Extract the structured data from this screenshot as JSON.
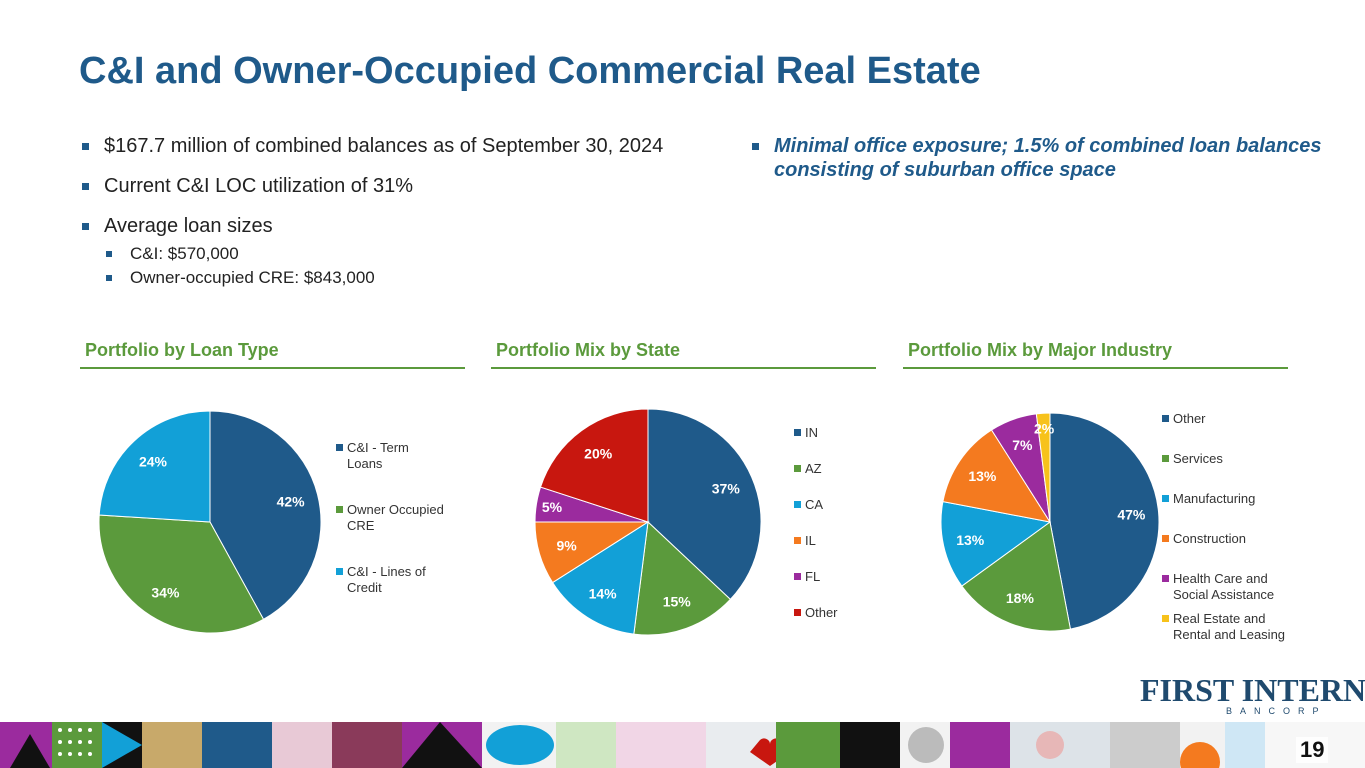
{
  "title": "C&I and Owner-Occupied Commercial Real Estate",
  "bullets": {
    "b1": "$167.7 million of combined balances as of September 30, 2024",
    "b2": "Current C&I LOC utilization of 31%",
    "b3": "Average loan sizes",
    "b3_sub": [
      "C&I: $570,000",
      "Owner-occupied CRE: $843,000"
    ]
  },
  "right_bullet": "Minimal office exposure; 1.5% of combined loan balances consisting of suburban office space",
  "sections": [
    "Portfolio by Loan Type",
    "Portfolio Mix by State",
    "Portfolio Mix by Major Industry"
  ],
  "chart_data": [
    {
      "type": "pie",
      "title": "Portfolio by Loan Type",
      "labels": [
        "C&I - Term Loans",
        "Owner Occupied CRE",
        "C&I - Lines of Credit"
      ],
      "values": [
        42,
        34,
        24
      ],
      "value_labels": [
        "42%",
        "34%",
        "24%"
      ],
      "colors": [
        "#1f5a8a",
        "#5b9a3c",
        "#12a0d7"
      ],
      "legend": "right"
    },
    {
      "type": "pie",
      "title": "Portfolio Mix by State",
      "labels": [
        "IN",
        "AZ",
        "CA",
        "IL",
        "FL",
        "Other"
      ],
      "values": [
        37,
        15,
        14,
        9,
        5,
        20
      ],
      "value_labels": [
        "37%",
        "15%",
        "14%",
        "9%",
        "5%",
        "20%"
      ],
      "colors": [
        "#1f5a8a",
        "#5b9a3c",
        "#12a0d7",
        "#f47a1f",
        "#9b2b9e",
        "#c8170f"
      ],
      "legend": "right"
    },
    {
      "type": "pie",
      "title": "Portfolio Mix by Major Industry",
      "labels": [
        "Other",
        "Services",
        "Manufacturing",
        "Construction",
        "Health Care and Social Assistance",
        "Real Estate and Rental and Leasing"
      ],
      "values": [
        47,
        18,
        13,
        13,
        7,
        2
      ],
      "value_labels": [
        "47%",
        "18%",
        "13%",
        "13%",
        "7%",
        "2%"
      ],
      "colors": [
        "#1f5a8a",
        "#5b9a3c",
        "#12a0d7",
        "#f47a1f",
        "#9b2b9e",
        "#f7c21b"
      ],
      "legend": "right"
    }
  ],
  "logo": {
    "main": "FIRST INTERNET",
    "sub": "BANCORP"
  },
  "page_number": "19",
  "icons": [
    "first-internet-logo",
    "decorative-footer-band"
  ]
}
